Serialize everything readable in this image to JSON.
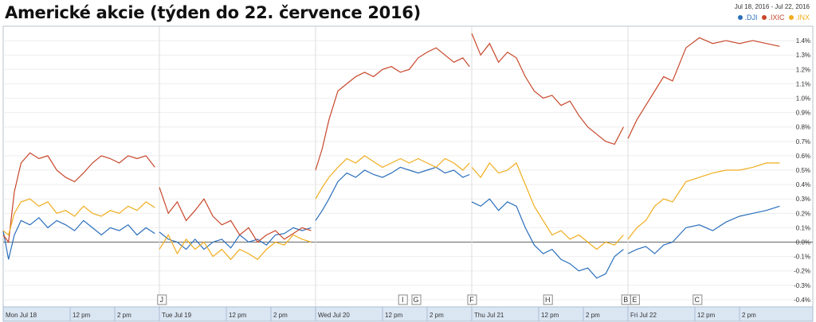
{
  "title": "Americké akcie (týden do 22. července 2016)",
  "date_range": "Jul 18, 2016  -  Jul 22, 2016",
  "colors": {
    "dji": "#2a6ebb",
    "ixic": "#c8472a",
    "inx": "#f0ad1e"
  },
  "chart_data": {
    "type": "line",
    "title": "Americké akcie (týden do 22. července 2016)",
    "ylim": [
      -0.45,
      1.5
    ],
    "y_ticks": [
      1.4,
      1.3,
      1.2,
      1.1,
      1.0,
      0.9,
      0.8,
      0.7,
      0.6,
      0.5,
      0.4,
      0.3,
      0.2,
      0.1,
      0.0,
      -0.1,
      -0.2,
      -0.3,
      -0.4
    ],
    "y_tick_labels": [
      "1.4%",
      "1.3%",
      "1.2%",
      "1.1%",
      "1.0%",
      "0.9%",
      "0.8%",
      "0.7%",
      "0.6%",
      "0.5%",
      "0.4%",
      "0.3%",
      "0.2%",
      "0.1%",
      "0.0%",
      "-0.1%",
      "-0.2%",
      "-0.3%",
      "-0.4%"
    ],
    "x_tick_labels": [
      "Mon Jul 18",
      "12 pm",
      "2 pm",
      "Tue Jul 19",
      "12 pm",
      "2 pm",
      "Wed Jul 20",
      "12 pm",
      "2 pm",
      "Thu Jul 21",
      "12 pm",
      "2 pm",
      "Fri Jul 22",
      "12 pm",
      "2 pm"
    ],
    "x_ticks": [
      0,
      1.5,
      2.5,
      3.5,
      5.0,
      6.0,
      7.0,
      8.5,
      9.5,
      10.5,
      12.0,
      13.0,
      14.0,
      15.5,
      16.5
    ],
    "xlim": [
      0,
      17.5
    ],
    "series": [
      {
        "name": ".DJI",
        "key": "dji",
        "segments": [
          {
            "x": [
              0,
              0.12,
              0.25,
              0.4,
              0.6,
              0.8,
              1.0,
              1.2,
              1.4,
              1.6,
              1.8,
              2.0,
              2.2,
              2.4,
              2.6,
              2.8,
              3.0,
              3.2,
              3.4
            ],
            "y": [
              0.08,
              -0.12,
              0.05,
              0.15,
              0.12,
              0.17,
              0.1,
              0.15,
              0.12,
              0.08,
              0.15,
              0.1,
              0.05,
              0.1,
              0.08,
              0.12,
              0.05,
              0.1,
              0.06
            ]
          },
          {
            "x": [
              3.5,
              3.7,
              3.9,
              4.1,
              4.3,
              4.5,
              4.7,
              4.9,
              5.1,
              5.3,
              5.5,
              5.7,
              5.9,
              6.1,
              6.3,
              6.5,
              6.7,
              6.9
            ],
            "y": [
              0.07,
              0.02,
              0.0,
              -0.05,
              0.02,
              -0.05,
              0.0,
              0.02,
              -0.04,
              0.05,
              0.0,
              0.02,
              -0.02,
              0.05,
              0.06,
              0.1,
              0.08,
              0.1
            ]
          },
          {
            "x": [
              7.0,
              7.15,
              7.3,
              7.5,
              7.7,
              7.9,
              8.1,
              8.3,
              8.5,
              8.7,
              8.9,
              9.1,
              9.3,
              9.5,
              9.7,
              9.9,
              10.1,
              10.3,
              10.45
            ],
            "y": [
              0.15,
              0.22,
              0.3,
              0.42,
              0.48,
              0.45,
              0.5,
              0.47,
              0.45,
              0.48,
              0.52,
              0.5,
              0.48,
              0.5,
              0.52,
              0.48,
              0.5,
              0.45,
              0.47
            ]
          },
          {
            "x": [
              10.5,
              10.7,
              10.9,
              11.1,
              11.3,
              11.5,
              11.7,
              11.9,
              12.1,
              12.3,
              12.5,
              12.7,
              12.9,
              13.1,
              13.3,
              13.5,
              13.7,
              13.9
            ],
            "y": [
              0.28,
              0.25,
              0.3,
              0.22,
              0.28,
              0.25,
              0.1,
              -0.02,
              -0.08,
              -0.05,
              -0.12,
              -0.15,
              -0.2,
              -0.18,
              -0.25,
              -0.22,
              -0.1,
              -0.05
            ]
          },
          {
            "x": [
              14.0,
              14.2,
              14.4,
              14.6,
              14.8,
              15.0,
              15.3,
              15.6,
              15.9,
              16.2,
              16.5,
              16.8,
              17.1,
              17.4
            ],
            "y": [
              -0.08,
              -0.05,
              -0.03,
              -0.08,
              -0.02,
              0.0,
              0.1,
              0.12,
              0.08,
              0.14,
              0.18,
              0.2,
              0.22,
              0.25
            ]
          }
        ]
      },
      {
        "name": ".IXIC",
        "key": "ixic",
        "segments": [
          {
            "x": [
              0,
              0.12,
              0.25,
              0.4,
              0.6,
              0.8,
              1.0,
              1.2,
              1.4,
              1.6,
              1.8,
              2.0,
              2.2,
              2.4,
              2.6,
              2.8,
              3.0,
              3.2,
              3.4
            ],
            "y": [
              0.05,
              0.0,
              0.35,
              0.55,
              0.62,
              0.58,
              0.6,
              0.5,
              0.45,
              0.42,
              0.48,
              0.55,
              0.6,
              0.58,
              0.55,
              0.6,
              0.58,
              0.6,
              0.52
            ]
          },
          {
            "x": [
              3.5,
              3.7,
              3.9,
              4.1,
              4.3,
              4.5,
              4.7,
              4.9,
              5.1,
              5.3,
              5.5,
              5.7,
              5.9,
              6.1,
              6.3,
              6.5,
              6.7,
              6.9
            ],
            "y": [
              0.38,
              0.2,
              0.28,
              0.15,
              0.22,
              0.3,
              0.18,
              0.12,
              0.15,
              0.05,
              0.1,
              0.0,
              0.05,
              0.08,
              0.02,
              0.06,
              0.1,
              0.08
            ]
          },
          {
            "x": [
              7.0,
              7.15,
              7.3,
              7.5,
              7.7,
              7.9,
              8.1,
              8.3,
              8.5,
              8.7,
              8.9,
              9.1,
              9.3,
              9.5,
              9.7,
              9.9,
              10.1,
              10.3,
              10.45
            ],
            "y": [
              0.5,
              0.65,
              0.85,
              1.05,
              1.1,
              1.15,
              1.18,
              1.15,
              1.2,
              1.22,
              1.18,
              1.2,
              1.28,
              1.32,
              1.35,
              1.3,
              1.25,
              1.28,
              1.22
            ]
          },
          {
            "x": [
              10.5,
              10.7,
              10.9,
              11.1,
              11.3,
              11.5,
              11.7,
              11.9,
              12.1,
              12.3,
              12.5,
              12.7,
              12.9,
              13.1,
              13.3,
              13.5,
              13.7,
              13.9
            ],
            "y": [
              1.45,
              1.3,
              1.38,
              1.25,
              1.32,
              1.28,
              1.15,
              1.05,
              1.0,
              1.02,
              0.95,
              0.98,
              0.88,
              0.8,
              0.75,
              0.7,
              0.68,
              0.8
            ]
          },
          {
            "x": [
              14.0,
              14.2,
              14.4,
              14.6,
              14.8,
              15.0,
              15.3,
              15.6,
              15.9,
              16.2,
              16.5,
              16.8,
              17.1,
              17.4
            ],
            "y": [
              0.72,
              0.85,
              0.95,
              1.05,
              1.15,
              1.12,
              1.35,
              1.42,
              1.38,
              1.4,
              1.38,
              1.4,
              1.38,
              1.36
            ]
          }
        ]
      },
      {
        "name": ".INX",
        "key": "inx",
        "segments": [
          {
            "x": [
              0,
              0.12,
              0.25,
              0.4,
              0.6,
              0.8,
              1.0,
              1.2,
              1.4,
              1.6,
              1.8,
              2.0,
              2.2,
              2.4,
              2.6,
              2.8,
              3.0,
              3.2,
              3.4
            ],
            "y": [
              0.08,
              0.05,
              0.2,
              0.28,
              0.3,
              0.25,
              0.28,
              0.2,
              0.22,
              0.18,
              0.25,
              0.2,
              0.18,
              0.22,
              0.2,
              0.25,
              0.22,
              0.28,
              0.24
            ]
          },
          {
            "x": [
              3.5,
              3.7,
              3.9,
              4.1,
              4.3,
              4.5,
              4.7,
              4.9,
              5.1,
              5.3,
              5.5,
              5.7,
              5.9,
              6.1,
              6.3,
              6.5,
              6.7,
              6.9
            ],
            "y": [
              -0.05,
              0.05,
              -0.08,
              0.02,
              -0.05,
              0.0,
              -0.1,
              -0.05,
              -0.12,
              -0.05,
              -0.08,
              -0.12,
              -0.05,
              0.0,
              -0.02,
              0.05,
              0.02,
              0.0
            ]
          },
          {
            "x": [
              7.0,
              7.15,
              7.3,
              7.5,
              7.7,
              7.9,
              8.1,
              8.3,
              8.5,
              8.7,
              8.9,
              9.1,
              9.3,
              9.5,
              9.7,
              9.9,
              10.1,
              10.3,
              10.45
            ],
            "y": [
              0.3,
              0.38,
              0.45,
              0.52,
              0.58,
              0.55,
              0.6,
              0.56,
              0.52,
              0.55,
              0.58,
              0.55,
              0.58,
              0.55,
              0.52,
              0.58,
              0.55,
              0.5,
              0.55
            ]
          },
          {
            "x": [
              10.5,
              10.7,
              10.9,
              11.1,
              11.3,
              11.5,
              11.7,
              11.9,
              12.1,
              12.3,
              12.5,
              12.7,
              12.9,
              13.1,
              13.3,
              13.5,
              13.7,
              13.9
            ],
            "y": [
              0.52,
              0.45,
              0.55,
              0.48,
              0.5,
              0.55,
              0.4,
              0.25,
              0.15,
              0.05,
              0.08,
              0.02,
              0.05,
              0.0,
              -0.05,
              0.0,
              -0.02,
              0.05
            ]
          },
          {
            "x": [
              14.0,
              14.2,
              14.4,
              14.6,
              14.8,
              15.0,
              15.3,
              15.6,
              15.9,
              16.2,
              16.5,
              16.8,
              17.1,
              17.4
            ],
            "y": [
              0.02,
              0.1,
              0.15,
              0.25,
              0.3,
              0.28,
              0.42,
              0.45,
              0.48,
              0.5,
              0.5,
              0.52,
              0.55,
              0.55
            ]
          }
        ]
      }
    ],
    "markers": [
      {
        "label": "J",
        "x": 3.55
      },
      {
        "label": "I",
        "x": 8.95
      },
      {
        "label": "G",
        "x": 9.25
      },
      {
        "label": "F",
        "x": 10.5
      },
      {
        "label": "H",
        "x": 12.2
      },
      {
        "label": "B",
        "x": 13.95
      },
      {
        "label": "E",
        "x": 14.15
      },
      {
        "label": "C",
        "x": 15.55
      }
    ]
  }
}
